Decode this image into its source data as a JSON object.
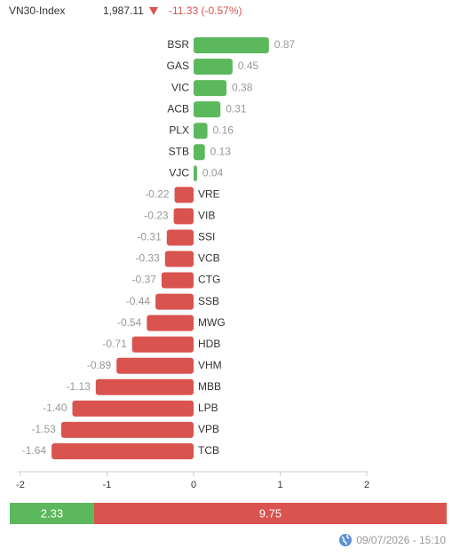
{
  "header": {
    "index": "VN30-Index",
    "price": "1,987.11",
    "change": "-11.33 (-0.57%)"
  },
  "chart_data": {
    "type": "hbar",
    "categories": [
      "BSR",
      "GAS",
      "VIC",
      "ACB",
      "PLX",
      "STB",
      "VJC",
      "VRE",
      "VIB",
      "SSI",
      "VCB",
      "CTG",
      "SSB",
      "MWG",
      "HDB",
      "VHM",
      "MBB",
      "LPB",
      "VPB",
      "TCB"
    ],
    "values": [
      0.87,
      0.45,
      0.38,
      0.31,
      0.16,
      0.13,
      0.04,
      -0.22,
      -0.23,
      -0.31,
      -0.33,
      -0.37,
      -0.44,
      -0.54,
      -0.71,
      -0.89,
      -1.13,
      -1.4,
      -1.53,
      -1.64
    ],
    "value_labels": [
      "0.87",
      "0.45",
      "0.38",
      "0.31",
      "0.16",
      "0.13",
      "0.04",
      "-0.22",
      "-0.23",
      "-0.31",
      "-0.33",
      "-0.37",
      "-0.44",
      "-0.54",
      "-0.71",
      "-0.89",
      "-1.13",
      "-1.40",
      "-1.53",
      "-1.64"
    ],
    "positive_color": "#5cb85c",
    "negative_color": "#d9534f",
    "xlim": [
      -2,
      2
    ],
    "xticks": [
      -2,
      -1,
      0,
      1,
      2
    ]
  },
  "breadth": {
    "values": [
      2.33,
      9.75
    ],
    "colors": [
      "#5cb85c",
      "#d9534f"
    ]
  },
  "timestamp": "09/07/2026 - 15:10"
}
